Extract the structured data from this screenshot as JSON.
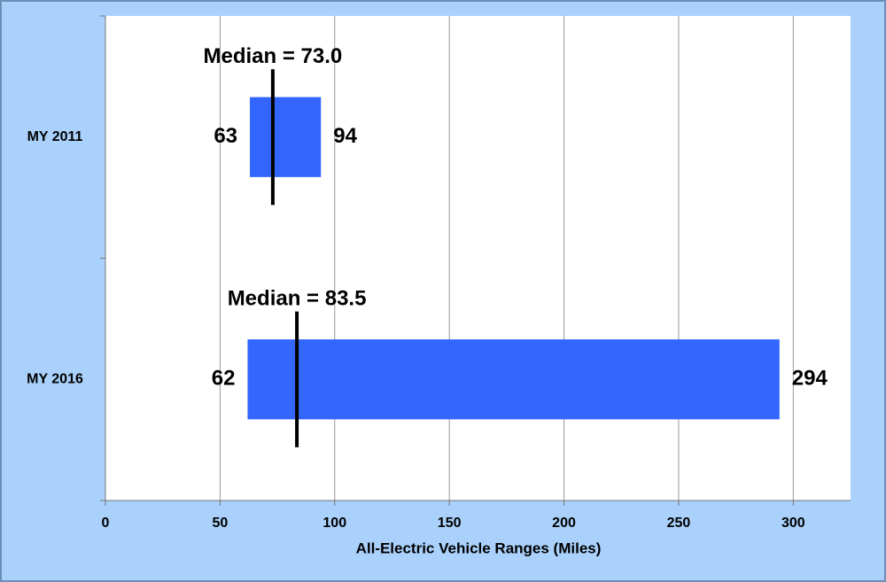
{
  "chart_data": {
    "type": "range_bar",
    "categories": [
      "MY 2011",
      "MY 2016"
    ],
    "low": {
      "values": [
        63,
        62
      ]
    },
    "high": {
      "values": [
        94,
        294
      ]
    },
    "median": {
      "values": [
        73.0,
        83.5
      ],
      "value_labels": [
        "Median = 73.0",
        "Median = 83.5"
      ]
    },
    "color": "#3366ff",
    "xlabel": "All-Electric Vehicle Ranges (Miles)",
    "xlim": [
      0,
      325
    ],
    "xticks": [
      0,
      50,
      100,
      150,
      200,
      250,
      300
    ],
    "grid": true
  }
}
